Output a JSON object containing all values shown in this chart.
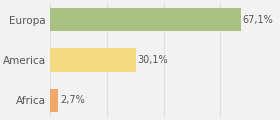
{
  "categories": [
    "Africa",
    "America",
    "Europa"
  ],
  "values": [
    2.7,
    30.1,
    67.1
  ],
  "labels": [
    "2,7%",
    "30,1%",
    "67,1%"
  ],
  "bar_colors": [
    "#f0a868",
    "#f5d980",
    "#a8c080"
  ],
  "background_color": "#f2f2f2",
  "xlim": [
    0,
    80
  ],
  "figsize": [
    2.8,
    1.2
  ],
  "dpi": 100,
  "grid_color": "#dddddd",
  "text_color": "#555555",
  "label_fontsize": 7.0,
  "ytick_fontsize": 7.5,
  "bar_height": 0.58
}
